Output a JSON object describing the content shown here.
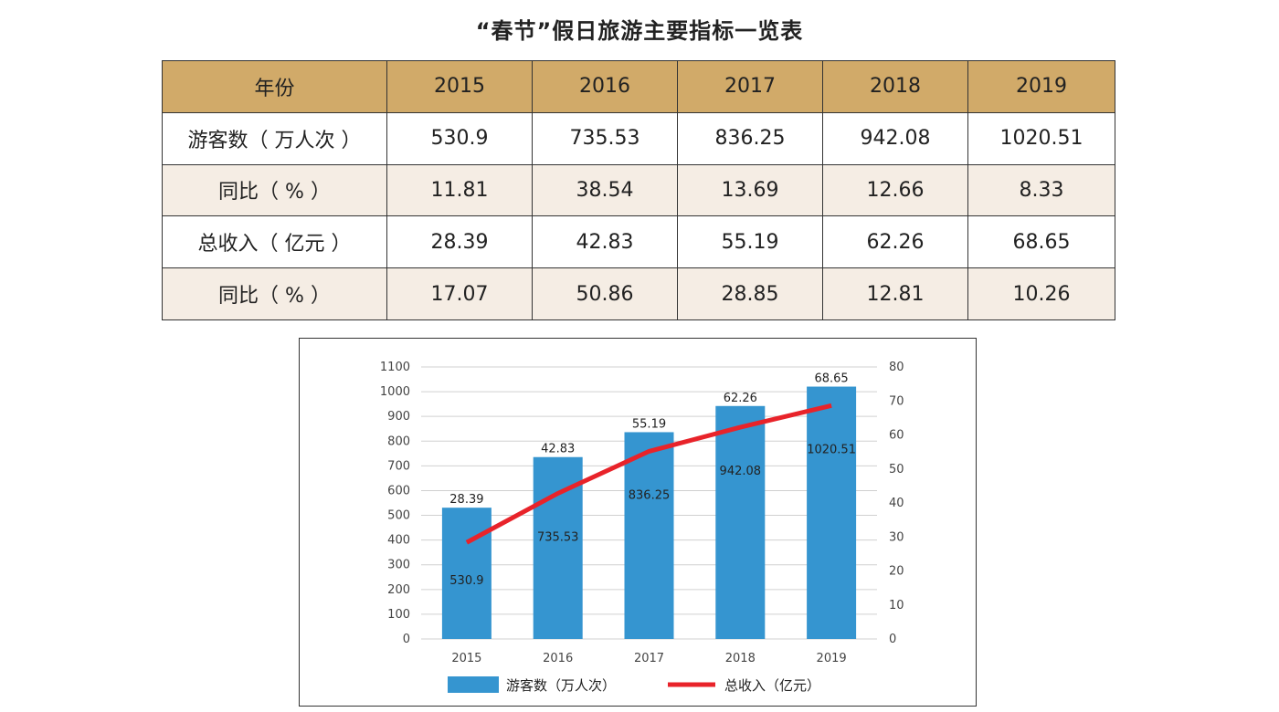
{
  "title": "“春节”假日旅游主要指标一览表",
  "table": {
    "header": [
      "年份",
      "2015",
      "2016",
      "2017",
      "2018",
      "2019"
    ],
    "rows": [
      {
        "label": "游客数（ 万人次 ）",
        "values": [
          "530.9",
          "735.53",
          "836.25",
          "942.08",
          "1020.51"
        ]
      },
      {
        "label": "同比（ % ）",
        "values": [
          "11.81",
          "38.54",
          "13.69",
          "12.66",
          "8.33"
        ]
      },
      {
        "label": "总收入（ 亿元 ）",
        "values": [
          "28.39",
          "42.83",
          "55.19",
          "62.26",
          "68.65"
        ]
      },
      {
        "label": "同比（ % ）",
        "values": [
          "17.07",
          "50.86",
          "28.85",
          "12.81",
          "10.26"
        ]
      }
    ]
  },
  "chart_data": {
    "type": "bar",
    "categories": [
      "2015",
      "2016",
      "2017",
      "2018",
      "2019"
    ],
    "series": [
      {
        "name": "游客数（万人次）",
        "type": "bar",
        "axis": "left",
        "values": [
          530.9,
          735.53,
          836.25,
          942.08,
          1020.51
        ],
        "color": "#3595d0"
      },
      {
        "name": "总收入（亿元）",
        "type": "line",
        "axis": "right",
        "values": [
          28.39,
          42.83,
          55.19,
          62.26,
          68.65
        ],
        "color": "#e8232a"
      }
    ],
    "ylim_left": [
      0,
      1100
    ],
    "yticks_left": [
      0,
      100,
      200,
      300,
      400,
      500,
      600,
      700,
      800,
      900,
      1000,
      1100
    ],
    "ylim_right": [
      0,
      80
    ],
    "yticks_right": [
      0,
      10,
      20,
      30,
      40,
      50,
      60,
      70,
      80
    ],
    "grid": true,
    "legend": "bottom"
  }
}
